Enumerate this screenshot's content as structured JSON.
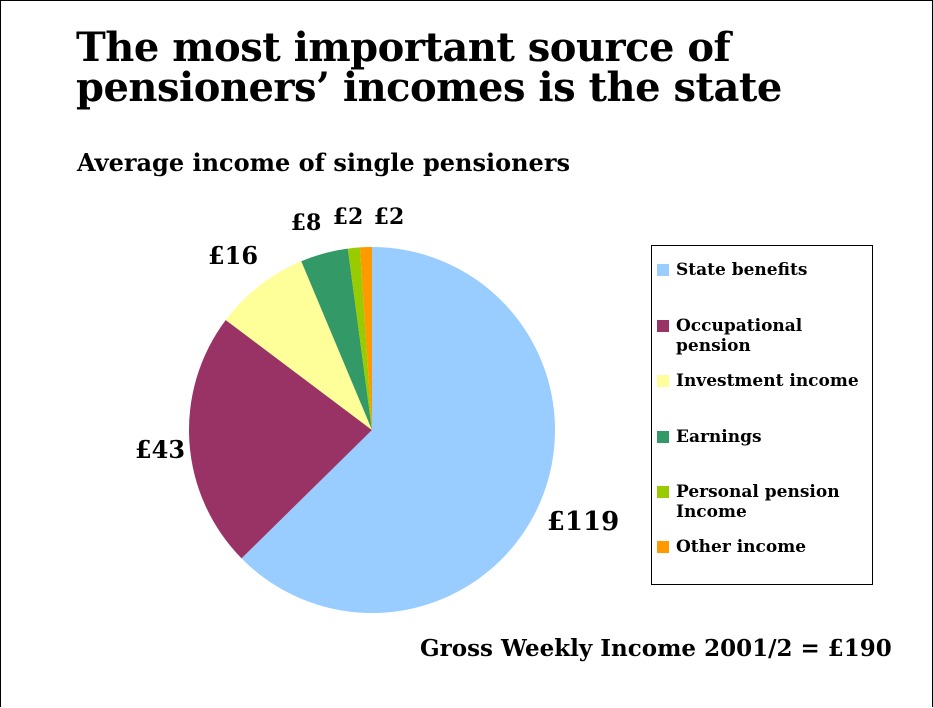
{
  "title_line1": "The most important source of",
  "title_line2": "pensioners’ incomes is the state",
  "chart_data": {
    "type": "pie",
    "title": "Average income of single pensioners",
    "categories": [
      "State benefits",
      "Occupational pension",
      "Investment income",
      "Earnings",
      "Personal pension Income",
      "Other income"
    ],
    "values": [
      119,
      43,
      16,
      8,
      2,
      2
    ],
    "data_labels": [
      "£119",
      "£43",
      "£16",
      "£8",
      "£2",
      "£2"
    ],
    "colors": [
      "#99ccff",
      "#993366",
      "#ffff99",
      "#339966",
      "#99cc00",
      "#ff9900"
    ],
    "legend_position": "right",
    "start_angle": "12 o'clock, clockwise"
  },
  "legend": [
    {
      "label": "State benefits",
      "color": "#99ccff"
    },
    {
      "label": "Occupational pension",
      "color": "#993366"
    },
    {
      "label": "Investment income",
      "color": "#ffff99"
    },
    {
      "label": "Earnings",
      "color": "#339966"
    },
    {
      "label": "Personal pension Income",
      "color": "#99cc00"
    },
    {
      "label": "Other income",
      "color": "#ff9900"
    }
  ],
  "footer": "Gross Weekly Income 2001/2 = £190"
}
